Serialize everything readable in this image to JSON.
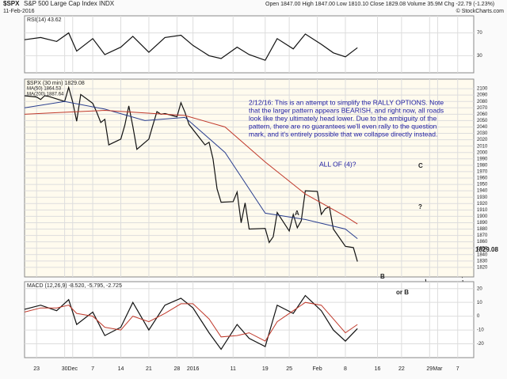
{
  "header": {
    "symbol": "$SPX",
    "name": "S&P 500 Large Cap Index INDX",
    "date": "11-Feb-2016",
    "quote": "Open 1847.00 High 1847.00 Low 1810.10 Close 1829.08 Volume 35.9M Chg -22.79 (-1.23%)",
    "credit": "© StockCharts.com"
  },
  "chart_data": [
    {
      "type": "line",
      "label": "RSI(14) 43.62",
      "ylim": [
        0,
        100
      ],
      "yticks": [
        70,
        30
      ],
      "xlim": [
        0,
        112
      ],
      "x": [
        0,
        4,
        8,
        11,
        13,
        17,
        20,
        24,
        27,
        31,
        35,
        39,
        42,
        46,
        49,
        53,
        56,
        60,
        63,
        67,
        70,
        74,
        77,
        80,
        83
      ],
      "series": [
        {
          "name": "RSI",
          "color": "#111",
          "values": [
            58,
            62,
            55,
            70,
            38,
            60,
            32,
            45,
            64,
            36,
            62,
            66,
            48,
            30,
            25,
            45,
            32,
            22,
            60,
            42,
            68,
            50,
            35,
            28,
            44
          ]
        }
      ]
    },
    {
      "type": "line",
      "label": "$SPX (30 min) 1829.08",
      "ylim": [
        1805,
        2115
      ],
      "yticks": [
        2100,
        2090,
        2080,
        2070,
        2060,
        2050,
        2040,
        2030,
        2020,
        2010,
        2000,
        1990,
        1980,
        1970,
        1960,
        1950,
        1940,
        1930,
        1920,
        1910,
        1900,
        1890,
        1880,
        1870,
        1860,
        1850,
        1840,
        1830,
        1820
      ],
      "xlim": [
        0,
        112
      ],
      "xticks": [
        {
          "value": 3,
          "label": "23"
        },
        {
          "value": 10,
          "label": "30"
        },
        {
          "value": 12,
          "label": "Dec"
        },
        {
          "value": 17,
          "label": "7"
        },
        {
          "value": 24,
          "label": "14"
        },
        {
          "value": 31,
          "label": "21"
        },
        {
          "value": 38,
          "label": "28"
        },
        {
          "value": 42,
          "label": "2016"
        },
        {
          "value": 52,
          "label": "11"
        },
        {
          "value": 60,
          "label": "19"
        },
        {
          "value": 66,
          "label": "25"
        },
        {
          "value": 73,
          "label": "Feb"
        },
        {
          "value": 80,
          "label": "8"
        },
        {
          "value": 88,
          "label": "16"
        },
        {
          "value": 94,
          "label": "22"
        },
        {
          "value": 101,
          "label": "29"
        },
        {
          "value": 103,
          "label": "Mar"
        },
        {
          "value": 108,
          "label": "7"
        }
      ],
      "x": [
        0,
        3,
        4,
        5,
        6,
        10,
        11,
        12,
        13,
        14,
        17,
        18,
        19,
        20,
        21,
        24,
        25,
        26,
        27,
        28,
        31,
        32,
        33,
        34,
        35,
        38,
        39,
        40,
        41,
        45,
        46,
        47,
        48,
        49,
        52,
        53,
        54,
        55,
        56,
        60,
        61,
        62,
        63,
        66,
        67,
        68,
        69,
        70,
        73,
        74,
        75,
        76,
        77,
        80,
        81,
        82,
        83
      ],
      "series": [
        {
          "name": "$SPX",
          "color": "#111",
          "values": [
            2089,
            2087,
            2083,
            2089,
            2088,
            2080,
            2102,
            2079,
            2049,
            2091,
            2077,
            2063,
            2047,
            2052,
            2012,
            2021,
            2043,
            2073,
            2041,
            2005,
            2021,
            2043,
            2064,
            2060,
            2061,
            2056,
            2078,
            2063,
            2044,
            2012,
            2016,
            1990,
            1943,
            1922,
            1923,
            1938,
            1890,
            1921,
            1880,
            1881,
            1859,
            1868,
            1906,
            1877,
            1903,
            1882,
            1893,
            1940,
            1939,
            1903,
            1912,
            1915,
            1880,
            1853,
            1852,
            1851,
            1829
          ]
        },
        {
          "name": "MA(50) 1864.53",
          "color": "#2a3f8f",
          "x": [
            0,
            10,
            20,
            30,
            40,
            50,
            60,
            70,
            80,
            83
          ],
          "values": [
            2070,
            2080,
            2068,
            2050,
            2055,
            2000,
            1905,
            1895,
            1880,
            1865
          ]
        },
        {
          "name": "MA(200) 1887.64",
          "color": "#c0392b",
          "x": [
            0,
            10,
            20,
            30,
            40,
            50,
            60,
            70,
            80,
            83
          ],
          "values": [
            2060,
            2063,
            2066,
            2062,
            2058,
            2040,
            1985,
            1935,
            1900,
            1888
          ]
        }
      ],
      "annotations": [
        "2/12/16:  This is an attempt to simplify the RALLY OPTIONS.  Note",
        "that the larger pattern appears BEARISH, and right now, all roads",
        "look like they ultimately head lower.  Due to the ambiguity of the",
        "pattern, there are no guarantees we'll even rally to the question",
        "mark, and it's entirely possible that we collapse directly instead.",
        "ALL OF (4)?",
        "C",
        "?",
        "A",
        "B",
        "or B",
        "1829.08"
      ]
    },
    {
      "type": "line",
      "label": "MACD (12,26,9) -8.520, -5.795, -2.725",
      "ylim": [
        -30,
        25
      ],
      "yticks": [
        20,
        10,
        0,
        -10,
        -20
      ],
      "xlim": [
        0,
        112
      ],
      "x": [
        0,
        4,
        8,
        11,
        13,
        17,
        20,
        24,
        27,
        31,
        35,
        39,
        42,
        46,
        49,
        53,
        56,
        60,
        63,
        67,
        70,
        74,
        77,
        80,
        83
      ],
      "series": [
        {
          "name": "MACD",
          "color": "#111",
          "values": [
            5,
            8,
            4,
            12,
            -6,
            3,
            -14,
            -8,
            10,
            -10,
            8,
            13,
            6,
            -12,
            -24,
            -6,
            -16,
            -22,
            8,
            2,
            15,
            4,
            -10,
            -18,
            -9
          ]
        },
        {
          "name": "Signal",
          "color": "#c0392b",
          "values": [
            3,
            6,
            6,
            8,
            2,
            0,
            -8,
            -10,
            0,
            -4,
            2,
            9,
            9,
            -2,
            -15,
            -14,
            -12,
            -18,
            -4,
            4,
            10,
            8,
            -2,
            -12,
            -6
          ]
        }
      ]
    }
  ]
}
